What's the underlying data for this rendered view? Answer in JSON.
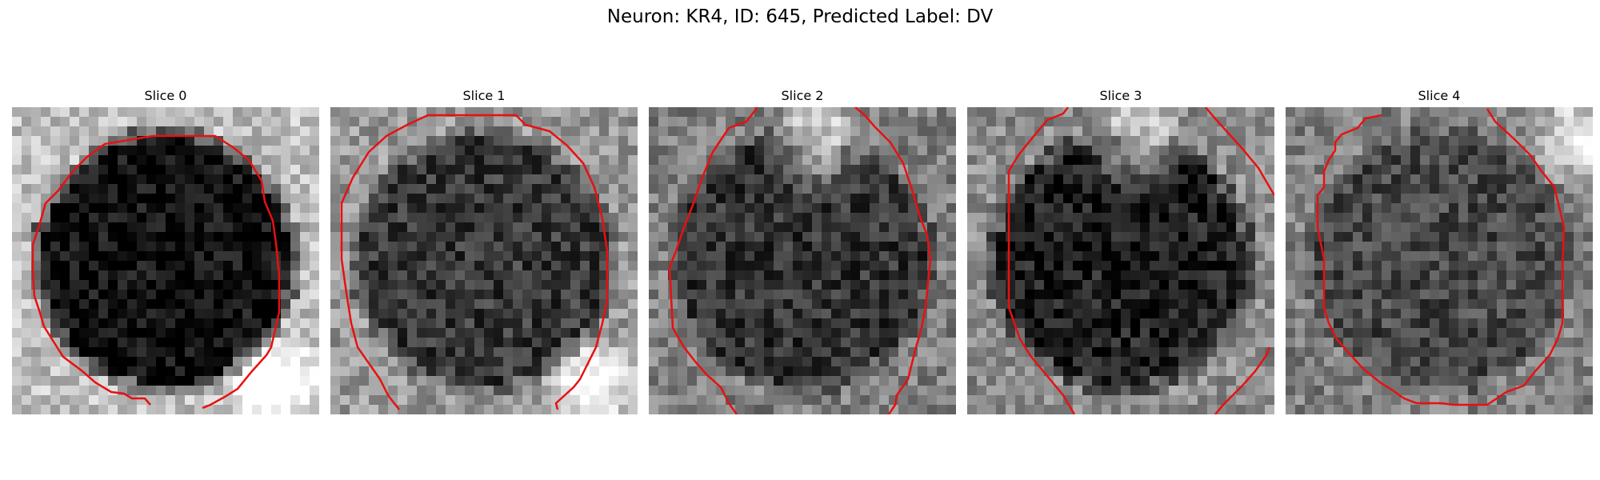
{
  "figure": {
    "title": "Neuron: KR4, ID: 645, Predicted Label: DV",
    "contour_color": "#e81010"
  },
  "slices": [
    {
      "title": "Slice 0",
      "seed": 11,
      "center_level": 0.05,
      "rim_level": 0.75,
      "bright_blob": "bottom-right"
    },
    {
      "title": "Slice 1",
      "seed": 23,
      "center_level": 0.22,
      "rim_level": 0.6,
      "bright_blob": "bottom-right"
    },
    {
      "title": "Slice 2",
      "seed": 37,
      "center_level": 0.2,
      "rim_level": 0.5,
      "bright_blob": "top"
    },
    {
      "title": "Slice 3",
      "seed": 53,
      "center_level": 0.12,
      "rim_level": 0.55,
      "bright_blob": "top"
    },
    {
      "title": "Slice 4",
      "seed": 71,
      "center_level": 0.28,
      "rim_level": 0.5,
      "bright_blob": "top-right"
    }
  ]
}
